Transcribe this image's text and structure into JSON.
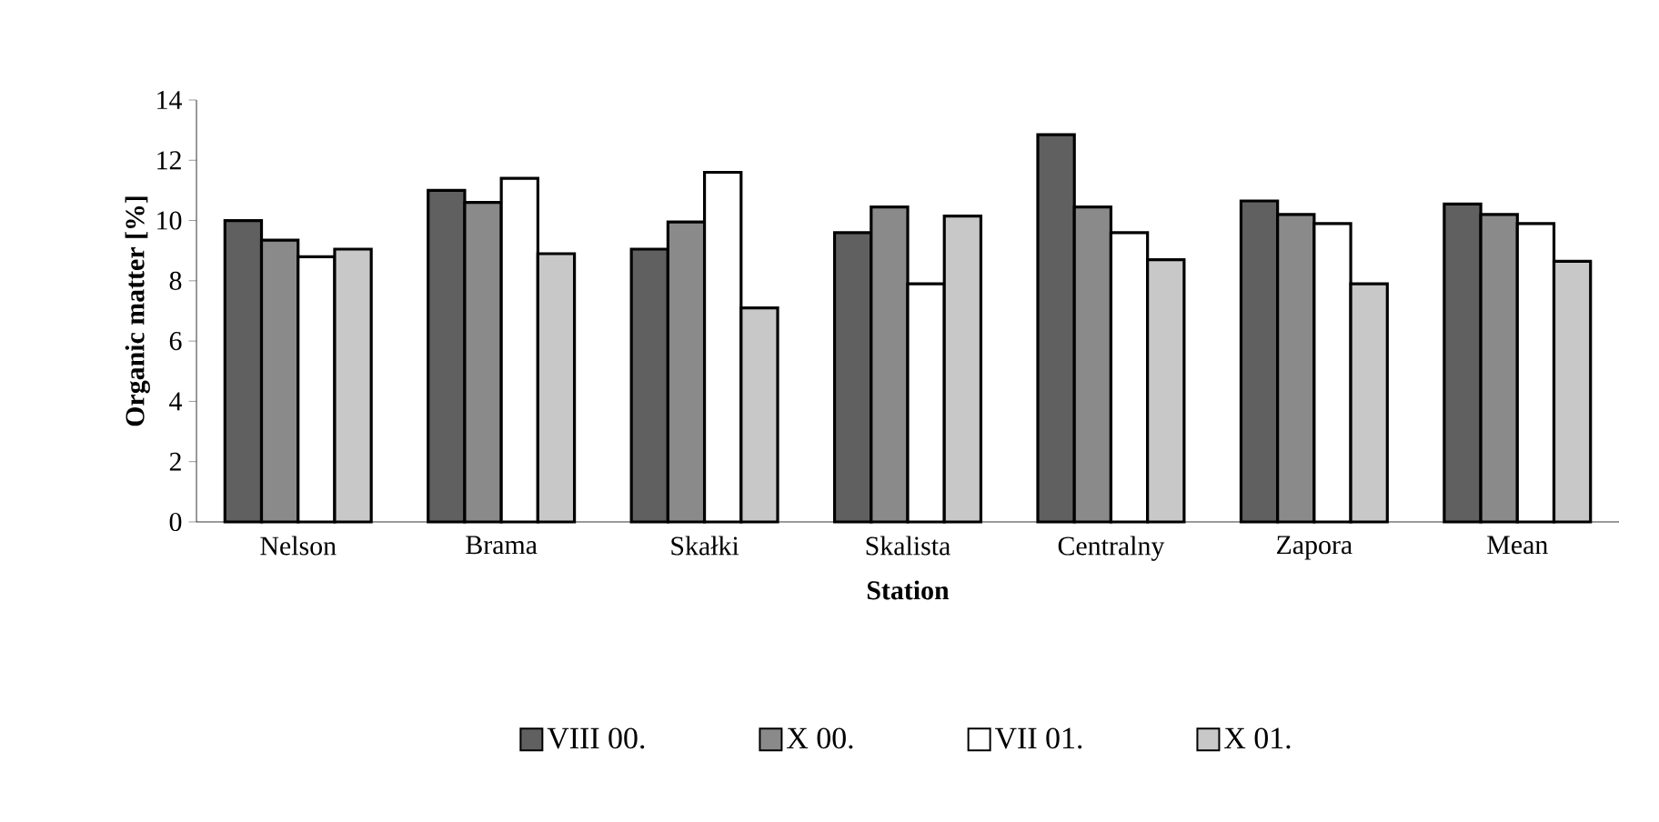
{
  "chart_data": {
    "type": "bar",
    "xlabel": "Station",
    "ylabel": "Organic matter [%]",
    "categories": [
      "Nelson",
      "Brama",
      "Skałki",
      "Skalista",
      "Centralny",
      "Zapora",
      "Mean"
    ],
    "series": [
      {
        "name": "VIII 00.",
        "color": "#606060",
        "values": [
          10.0,
          11.0,
          9.05,
          9.6,
          12.85,
          10.65,
          10.55
        ]
      },
      {
        "name": "X 00.",
        "color": "#8a8a8a",
        "values": [
          9.35,
          10.6,
          9.95,
          10.45,
          10.45,
          10.2,
          10.2
        ]
      },
      {
        "name": "VII 01.",
        "color": "#ffffff",
        "values": [
          8.8,
          11.4,
          11.6,
          7.9,
          9.6,
          9.9,
          9.9
        ]
      },
      {
        "name": "X 01.",
        "color": "#c8c8c8",
        "values": [
          9.05,
          8.9,
          7.1,
          10.15,
          8.7,
          7.9,
          8.65
        ]
      }
    ],
    "ylim": [
      0,
      14
    ],
    "yticks": [
      0,
      2,
      4,
      6,
      8,
      10,
      12,
      14
    ],
    "grid": false,
    "legend": "bottom"
  }
}
